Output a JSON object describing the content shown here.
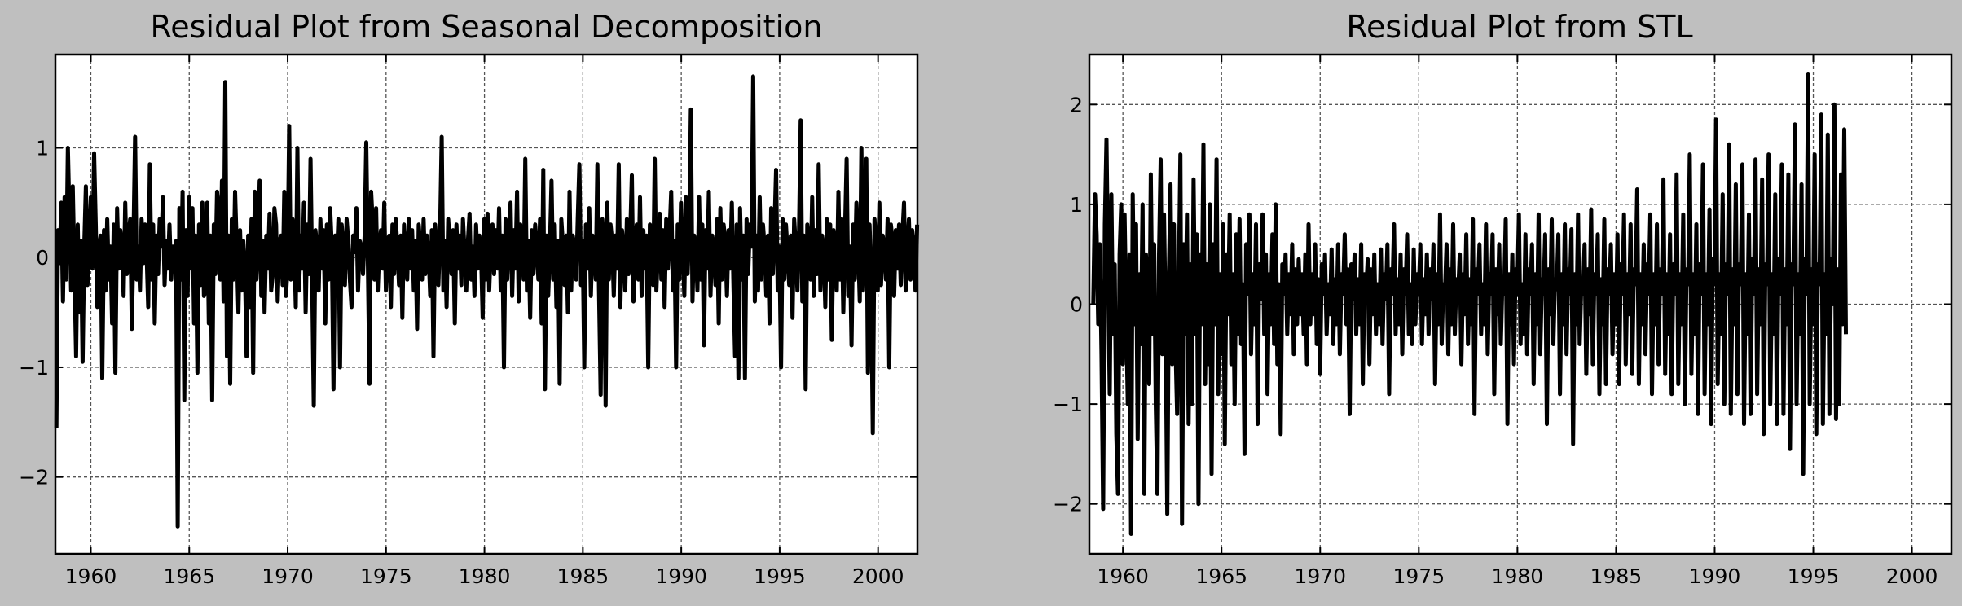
{
  "figure": {
    "background": "#bfbfbf",
    "line_color": "#000000",
    "grid_color": "#555555"
  },
  "chart_data": [
    {
      "type": "line",
      "title": "Residual Plot from Seasonal Decomposition",
      "xlabel": "",
      "ylabel": "",
      "xlim": [
        1958.2,
        2002.0
      ],
      "ylim": [
        -2.7,
        1.85
      ],
      "xticks": [
        1960,
        1965,
        1970,
        1975,
        1980,
        1985,
        1990,
        1995,
        2000
      ],
      "xtick_labels": [
        "1960",
        "1965",
        "1970",
        "1975",
        "1980",
        "1985",
        "1990",
        "1995",
        "2000"
      ],
      "yticks": [
        -2,
        -1,
        0,
        1
      ],
      "ytick_labels": [
        "−2",
        "−1",
        "0",
        "1"
      ],
      "grid": true,
      "series": [
        {
          "x_start": 1958.25,
          "x_step": 0.0833,
          "values": [
            -1.55,
            0.25,
            -0.05,
            0.5,
            -0.4,
            0.55,
            -0.2,
            1.0,
            0.35,
            -0.3,
            0.65,
            -0.1,
            -0.9,
            0.3,
            -0.5,
            0.15,
            -0.95,
            0.1,
            0.65,
            -0.25,
            0.2,
            0.55,
            -0.1,
            0.95,
            0.3,
            -0.45,
            0.1,
            0.2,
            -1.1,
            0.25,
            -0.3,
            0.35,
            -0.2,
            0.1,
            -0.6,
            0.3,
            -1.05,
            0.45,
            -0.1,
            0.25,
            0.1,
            -0.35,
            0.5,
            -0.15,
            0.2,
            0.35,
            -0.65,
            0.15,
            1.1,
            -0.2,
            0.1,
            -0.3,
            0.35,
            -0.05,
            0.3,
            0.05,
            -0.45,
            0.85,
            -0.2,
            0.3,
            -0.6,
            0.2,
            -0.15,
            0.35,
            0.1,
            0.55,
            -0.25,
            0.15,
            -0.1,
            0.3,
            -0.2,
            0.1,
            -0.05,
            0.15,
            -2.45,
            0.45,
            -0.2,
            0.6,
            -1.3,
            0.25,
            -0.35,
            0.55,
            -0.1,
            0.45,
            -0.6,
            0.2,
            -1.05,
            0.3,
            -0.25,
            0.5,
            -0.35,
            -0.3,
            0.5,
            -0.6,
            0.2,
            -1.3,
            0.3,
            -0.15,
            0.6,
            0.45,
            -0.2,
            0.7,
            -0.4,
            1.6,
            -0.9,
            0.2,
            -1.15,
            0.35,
            -0.2,
            0.6,
            0.1,
            -0.5,
            0.25,
            -0.3,
            0.15,
            -0.1,
            -0.9,
            0.2,
            -0.45,
            0.35,
            -1.05,
            0.6,
            -0.2,
            0.1,
            0.7,
            -0.35,
            0.15,
            -0.5,
            0.2,
            -0.1,
            0.4,
            -0.3,
            -0.15,
            0.45,
            0.3,
            -0.4,
            0.15,
            0.2,
            -0.25,
            0.6,
            -0.35,
            -0.1,
            1.2,
            -0.2,
            0.35,
            0.15,
            -0.45,
            1.0,
            -0.3,
            0.2,
            -0.1,
            0.5,
            -0.5,
            0.3,
            -0.15,
            0.9,
            -0.2,
            -1.35,
            0.25,
            0.1,
            -0.3,
            0.35,
            -0.1,
            0.25,
            -0.6,
            0.3,
            -0.2,
            0.45,
            0.1,
            -1.2,
            0.2,
            -0.05,
            0.35,
            -1.0,
            0.3,
            0.1,
            -0.25,
            0.35,
            0.15,
            -0.2,
            -0.45,
            0.2,
            0.05,
            0.45,
            -0.3,
            0.15,
            0.1,
            -0.15,
            0.2,
            1.05,
            -0.05,
            -1.15,
            0.6,
            0.3,
            -0.2,
            0.45,
            -0.3,
            0.1,
            0.25,
            -0.1,
            0.5,
            -0.3,
            0.15,
            0.2,
            -0.45,
            0.3,
            -0.15,
            0.35,
            0.1,
            -0.25,
            0.2,
            -0.55,
            0.3,
            0.05,
            -0.2,
            0.35,
            -0.1,
            0.25,
            -0.3,
            0.15,
            -0.65,
            0.3,
            0.1,
            -0.2,
            0.35,
            -0.15,
            0.2,
            0.05,
            -0.35,
            0.25,
            -0.9,
            0.3,
            0.1,
            -0.25,
            0.2,
            1.1,
            -0.3,
            0.15,
            -0.45,
            0.35,
            0.1,
            -0.15,
            0.25,
            -0.6,
            0.3,
            -0.1,
            0.2,
            -0.25,
            0.35,
            0.05,
            -0.3,
            0.15,
            0.4,
            -0.2,
            0.1,
            -0.35,
            0.3,
            -0.1,
            0.2,
            0.05,
            -0.55,
            0.35,
            -0.2,
            0.4,
            -0.3,
            0.1,
            0.3,
            -0.15,
            0.25,
            -0.1,
            0.45,
            -0.3,
            0.2,
            -1.0,
            0.35,
            -0.2,
            0.15,
            0.5,
            -0.35,
            0.25,
            -0.1,
            0.6,
            -0.4,
            0.3,
            0.1,
            -0.2,
            0.9,
            -0.3,
            0.15,
            -0.55,
            0.25,
            -0.15,
            0.3,
            0.1,
            -0.2,
            0.35,
            -0.6,
            0.8,
            -1.2,
            0.2,
            -0.35,
            0.1,
            0.7,
            -0.2,
            0.3,
            -0.45,
            0.15,
            -1.15,
            0.35,
            0.1,
            -0.25,
            0.2,
            -0.5,
            0.6,
            -0.3,
            0.2,
            0.1,
            -0.2,
            0.35,
            0.85,
            -0.25,
            0.15,
            -1.0,
            0.3,
            -0.1,
            0.45,
            -0.35,
            0.2,
            0.05,
            -0.2,
            0.85,
            -0.3,
            -1.25,
            0.35,
            0.1,
            -1.35,
            0.5,
            -0.2,
            0.3,
            0.15,
            -0.35,
            0.2,
            -0.1,
            0.85,
            -0.45,
            0.25,
            0.1,
            -0.3,
            0.35,
            -0.15,
            0.2,
            0.75,
            -0.4,
            0.1,
            0.3,
            -0.2,
            0.55,
            -0.35,
            0.25,
            -0.1,
            0.2,
            -1.0,
            0.3,
            0.15,
            -0.25,
            0.9,
            -0.3,
            0.1,
            0.4,
            -0.2,
            0.25,
            -0.45,
            0.35,
            -0.1,
            0.2,
            0.6,
            -0.3,
            0.15,
            -1.0,
            0.3,
            -0.2,
            0.5,
            0.1,
            -0.35,
            0.55,
            -0.15,
            0.25,
            1.35,
            -0.4,
            0.2,
            0.1,
            -0.3,
            0.55,
            -0.2,
            0.3,
            -0.8,
            0.25,
            -0.1,
            0.6,
            -0.35,
            0.2,
            0.1,
            -0.25,
            0.35,
            -0.6,
            0.45,
            -0.2,
            0.3,
            0.15,
            -0.35,
            0.25,
            -0.1,
            0.5,
            -0.25,
            -0.9,
            0.3,
            -1.1,
            0.45,
            -0.2,
            0.2,
            -1.1,
            0.35,
            -0.15,
            0.3,
            0.1,
            1.65,
            -0.4,
            0.2,
            -0.3,
            0.55,
            -0.2,
            0.3,
            0.1,
            -0.35,
            0.2,
            -0.6,
            0.45,
            -0.15,
            0.25,
            0.8,
            -0.3,
            0.1,
            -1.0,
            0.35,
            -0.2,
            0.3,
            0.05,
            -0.25,
            0.2,
            -0.55,
            0.35,
            0.1,
            -0.3,
            0.25,
            1.25,
            -0.4,
            0.2,
            -1.2,
            0.3,
            0.1,
            -0.2,
            0.55,
            -0.35,
            0.25,
            -0.15,
            0.85,
            -0.3,
            0.2,
            0.1,
            -0.45,
            0.35,
            -0.2,
            0.3,
            -0.75,
            0.25,
            0.1,
            -0.3,
            0.6,
            -0.2,
            0.35,
            -0.5,
            0.2,
            0.9,
            -0.35,
            0.1,
            -0.8,
            0.3,
            -0.2,
            0.5,
            0.15,
            -0.4,
            1.0,
            -0.3,
            0.25,
            0.9,
            -1.05,
            0.3,
            -0.2,
            -1.6,
            0.35,
            0.1,
            -0.3,
            0.5,
            -0.25,
            0.2,
            0.1,
            -0.2,
            0.35,
            -1.0,
            0.3,
            0.15,
            -0.35,
            0.25,
            -0.1,
            0.3,
            -0.25,
            0.2,
            0.5,
            -0.3,
            0.1,
            0.35,
            -0.2,
            0.25,
            0.1,
            -0.3,
            0.3
          ]
        }
      ]
    },
    {
      "type": "line",
      "title": "Residual Plot from STL",
      "xlabel": "",
      "ylabel": "",
      "xlim": [
        1958.3,
        2002.0
      ],
      "ylim": [
        -2.5,
        2.5
      ],
      "xticks": [
        1960,
        1965,
        1970,
        1975,
        1980,
        1985,
        1990,
        1995,
        2000
      ],
      "xtick_labels": [
        "1960",
        "1965",
        "1970",
        "1975",
        "1980",
        "1985",
        "1990",
        "1995",
        "2000"
      ],
      "yticks": [
        -2,
        -1,
        0,
        1,
        2
      ],
      "ytick_labels": [
        "−2",
        "−1",
        "0",
        "1",
        "2"
      ],
      "grid": true,
      "series": [
        {
          "x_start": 1958.5,
          "x_step": 0.0833,
          "values": [
            0.0,
            1.1,
            0.7,
            -0.2,
            0.6,
            -0.5,
            -2.05,
            0.8,
            1.65,
            0.3,
            -0.9,
            1.1,
            -0.3,
            0.4,
            -1.3,
            -1.9,
            0.5,
            1.0,
            -0.6,
            0.9,
            -0.1,
            -1.0,
            0.5,
            -2.3,
            1.1,
            -0.2,
            0.8,
            -1.35,
            0.3,
            -0.4,
            1.0,
            -1.9,
            0.5,
            0.2,
            -0.8,
            1.3,
            -0.3,
            0.6,
            -1.0,
            -1.9,
            0.5,
            1.45,
            -0.5,
            0.9,
            -0.2,
            -2.1,
            0.3,
            1.2,
            -0.6,
            0.8,
            -0.4,
            -1.1,
            0.2,
            1.5,
            -2.2,
            0.6,
            -0.3,
            0.9,
            -1.2,
            0.4,
            -1.0,
            1.25,
            -0.3,
            0.7,
            -2.0,
            0.5,
            -0.2,
            1.6,
            -0.8,
            0.4,
            -0.6,
            1.0,
            -1.7,
            0.6,
            -0.2,
            1.45,
            -0.9,
            0.3,
            -0.5,
            0.8,
            -1.4,
            0.5,
            -0.1,
            0.9,
            -0.6,
            0.3,
            -1.0,
            0.7,
            -0.3,
            0.85,
            -0.4,
            0.2,
            -1.5,
            0.6,
            0.1,
            0.9,
            -0.5,
            0.3,
            -0.2,
            0.8,
            -1.2,
            0.4,
            0.05,
            0.9,
            -0.3,
            0.5,
            -0.9,
            0.3,
            -0.2,
            0.7,
            -0.4,
            1.0,
            -0.6,
            0.2,
            -1.3,
            0.4,
            0.1,
            0.5,
            -0.3,
            0.3,
            -0.1,
            0.6,
            -0.5,
            0.35,
            -0.2,
            0.45,
            -0.1,
            0.3,
            -0.3,
            0.5,
            -0.6,
            0.8,
            -0.2,
            0.3,
            -0.1,
            0.6,
            -0.4,
            0.25,
            -0.7,
            0.4,
            0.1,
            0.5,
            -0.3,
            0.2,
            -0.1,
            0.55,
            -0.4,
            0.25,
            -0.2,
            0.6,
            -0.5,
            0.3,
            0.1,
            0.7,
            -0.2,
            0.35,
            -1.1,
            0.4,
            0.05,
            0.5,
            -0.3,
            0.25,
            -0.2,
            0.6,
            -0.8,
            0.3,
            0.1,
            0.45,
            -0.6,
            0.35,
            -0.1,
            0.5,
            -0.3,
            0.2,
            -0.2,
            0.55,
            -0.4,
            0.3,
            0.05,
            0.6,
            -0.9,
            0.35,
            0.1,
            0.8,
            -0.3,
            0.25,
            -0.2,
            0.5,
            -0.5,
            0.35,
            0.1,
            0.7,
            -0.3,
            0.2,
            -0.4,
            0.55,
            -0.2,
            0.3,
            0.1,
            0.6,
            -0.4,
            0.25,
            -0.1,
            0.5,
            -0.3,
            0.35,
            0.05,
            0.6,
            -0.8,
            0.3,
            -0.2,
            0.9,
            -0.4,
            0.2,
            0.1,
            0.6,
            -0.5,
            0.35,
            -0.2,
            0.8,
            -0.3,
            0.25,
            0.1,
            0.5,
            -0.6,
            0.3,
            -0.1,
            0.7,
            -0.4,
            0.25,
            -0.2,
            0.85,
            -1.1,
            0.35,
            0.1,
            0.6,
            -0.3,
            0.2,
            -0.2,
            0.8,
            -0.5,
            0.3,
            0.1,
            0.7,
            -0.9,
            0.35,
            -0.1,
            0.6,
            -0.4,
            0.25,
            0.1,
            0.85,
            -1.2,
            0.3,
            -0.2,
            0.5,
            -0.6,
            0.35,
            0.1,
            0.9,
            -0.4,
            0.2,
            -0.3,
            0.7,
            -0.5,
            0.35,
            0.1,
            0.6,
            -0.8,
            0.3,
            -0.2,
            0.9,
            -0.5,
            0.25,
            0.1,
            0.7,
            -1.2,
            0.35,
            -0.1,
            0.85,
            -0.4,
            0.25,
            0.15,
            0.7,
            -0.9,
            0.3,
            -0.2,
            0.8,
            -0.5,
            0.35,
            0.1,
            0.75,
            -1.4,
            0.3,
            -0.2,
            0.9,
            -0.4,
            0.2,
            0.1,
            0.6,
            -0.7,
            0.35,
            -0.1,
            0.95,
            -0.6,
            0.3,
            0.1,
            0.7,
            -0.9,
            0.25,
            -0.2,
            0.85,
            -0.8,
            0.35,
            0.1,
            0.6,
            -0.5,
            0.3,
            -0.2,
            0.7,
            -0.8,
            0.4,
            0.1,
            0.9,
            -0.6,
            0.3,
            -0.1,
            0.8,
            -0.7,
            0.35,
            0.2,
            1.15,
            -0.8,
            0.3,
            -0.2,
            0.6,
            -0.5,
            0.4,
            0.1,
            0.9,
            -0.9,
            0.3,
            -0.2,
            0.8,
            -0.6,
            0.35,
            0.1,
            1.25,
            -0.7,
            0.3,
            -0.3,
            0.7,
            -0.9,
            0.4,
            0.1,
            1.3,
            -0.8,
            0.3,
            -0.2,
            0.9,
            -1.0,
            0.35,
            0.2,
            1.5,
            -0.7,
            0.3,
            -0.3,
            0.8,
            -1.1,
            0.4,
            0.1,
            1.4,
            -0.9,
            0.3,
            -0.2,
            0.95,
            -1.2,
            0.45,
            0.2,
            1.85,
            -0.8,
            0.3,
            -0.3,
            1.1,
            -1.0,
            0.4,
            0.1,
            1.6,
            -1.1,
            0.35,
            -0.2,
            1.2,
            -0.9,
            0.4,
            0.2,
            1.4,
            -1.2,
            0.3,
            -0.3,
            0.9,
            -1.1,
            0.45,
            0.1,
            1.45,
            -0.9,
            0.35,
            -0.2,
            1.25,
            -1.3,
            0.4,
            0.2,
            1.5,
            -1.0,
            0.3,
            -0.3,
            1.1,
            -1.2,
            0.45,
            0.1,
            1.4,
            -1.1,
            0.35,
            -0.2,
            1.3,
            -1.45,
            0.4,
            0.2,
            1.8,
            -1.0,
            0.3,
            -0.3,
            1.2,
            -1.7,
            0.45,
            0.1,
            2.3,
            -1.0,
            0.35,
            -0.2,
            1.5,
            -1.3,
            0.4,
            0.2,
            1.9,
            -1.2,
            0.3,
            -0.3,
            1.7,
            -1.1,
            0.45,
            0.0,
            2.0,
            -1.15,
            0.35,
            -1.0,
            1.3,
            -0.2,
            1.75,
            -0.3
          ]
        }
      ]
    }
  ]
}
